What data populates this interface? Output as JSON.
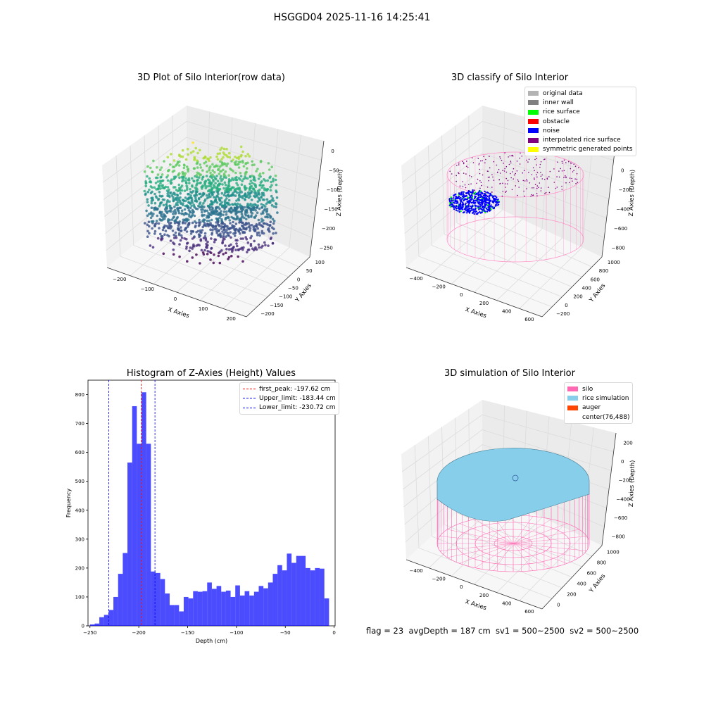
{
  "header": {
    "suptitle": "HSGGD04 2025-11-16 14:25:41"
  },
  "panels": {
    "raw": {
      "title": "3D Plot of Silo Interior(row data)",
      "xlabel": "X Axies",
      "ylabel": "Y Axies",
      "zlabel": "Z Axies (Depth)",
      "xticks": [
        "−200",
        "−100",
        "0",
        "100",
        "200"
      ],
      "yticks": [
        "100",
        "50",
        "0",
        "−50",
        "−100",
        "−150",
        "−200"
      ],
      "zticks": [
        "0",
        "−50",
        "−100",
        "−150",
        "−200",
        "−250"
      ]
    },
    "classify": {
      "title": "3D classify of Silo Interior",
      "xlabel": "X Axies",
      "ylabel": "Y Axies",
      "zlabel": "Z Axies (Depth)",
      "xticks": [
        "−400",
        "−200",
        "0",
        "200",
        "400",
        "600"
      ],
      "yticks": [
        "1000",
        "800",
        "600",
        "400",
        "200",
        "0",
        "−200"
      ],
      "zticks": [
        "200",
        "0",
        "−200",
        "−400",
        "−600",
        "−800"
      ],
      "legend": [
        {
          "label": "original data",
          "color": "#b3b3b3"
        },
        {
          "label": "inner wall",
          "color": "#808080"
        },
        {
          "label": "rice surface",
          "color": "#00ff00"
        },
        {
          "label": "obstacle",
          "color": "#ff0000"
        },
        {
          "label": "noise",
          "color": "#0000ff"
        },
        {
          "label": "interpolated rice surface",
          "color": "#800080"
        },
        {
          "label": "symmetric generated points",
          "color": "#ffff00"
        }
      ]
    },
    "simulation": {
      "title": "3D simulation of Silo Interior",
      "xlabel": "X Axies",
      "ylabel": "Y Axies",
      "zlabel": "Z Axies (Depth)",
      "xticks": [
        "−400",
        "−200",
        "0",
        "200",
        "400",
        "600"
      ],
      "yticks": [
        "1000",
        "800",
        "600",
        "400",
        "200",
        "0"
      ],
      "zticks": [
        "200",
        "0",
        "−200",
        "−400",
        "−600",
        "−800"
      ],
      "legend": [
        {
          "label": "silo",
          "color": "#ff69b4"
        },
        {
          "label": "rice simulation",
          "color": "#87ceeb"
        },
        {
          "label": "auger",
          "color": "#ff4500"
        },
        {
          "label": "center(76,488)",
          "color": ""
        }
      ]
    }
  },
  "footer": {
    "text": "flag = 23  avgDepth = 187 cm  sv1 = 500~2500  sv2 = 500~2500"
  },
  "chart_data": {
    "type": "bar",
    "title": "Histogram of Z-Axies (Height) Values",
    "xlabel": "Depth (cm)",
    "ylabel": "Frequency",
    "xlim": [
      -252,
      1
    ],
    "ylim": [
      0,
      850
    ],
    "xticks": [
      -250,
      -200,
      -150,
      -100,
      -50,
      0
    ],
    "yticks": [
      0,
      100,
      200,
      300,
      400,
      500,
      600,
      700,
      800
    ],
    "bin_start": -250,
    "bin_width": 4.8,
    "color": "#0000ff",
    "values": [
      5,
      8,
      30,
      38,
      55,
      100,
      180,
      252,
      565,
      760,
      630,
      808,
      630,
      188,
      183,
      162,
      112,
      72,
      72,
      50,
      100,
      95,
      120,
      118,
      120,
      150,
      128,
      138,
      118,
      122,
      100,
      140,
      105,
      120,
      105,
      118,
      138,
      130,
      150,
      180,
      210,
      192,
      250,
      218,
      242,
      242,
      200,
      192,
      200,
      198,
      95
    ],
    "lines": [
      {
        "label": "first_peak: -197.62 cm",
        "x": -197.62,
        "color": "#ff0000"
      },
      {
        "label": "Upper_limit: -183.44 cm",
        "x": -183.44,
        "color": "#0000ff"
      },
      {
        "label": "Lower_limit: -230.72 cm",
        "x": -230.72,
        "color": "#0000ff"
      }
    ]
  }
}
